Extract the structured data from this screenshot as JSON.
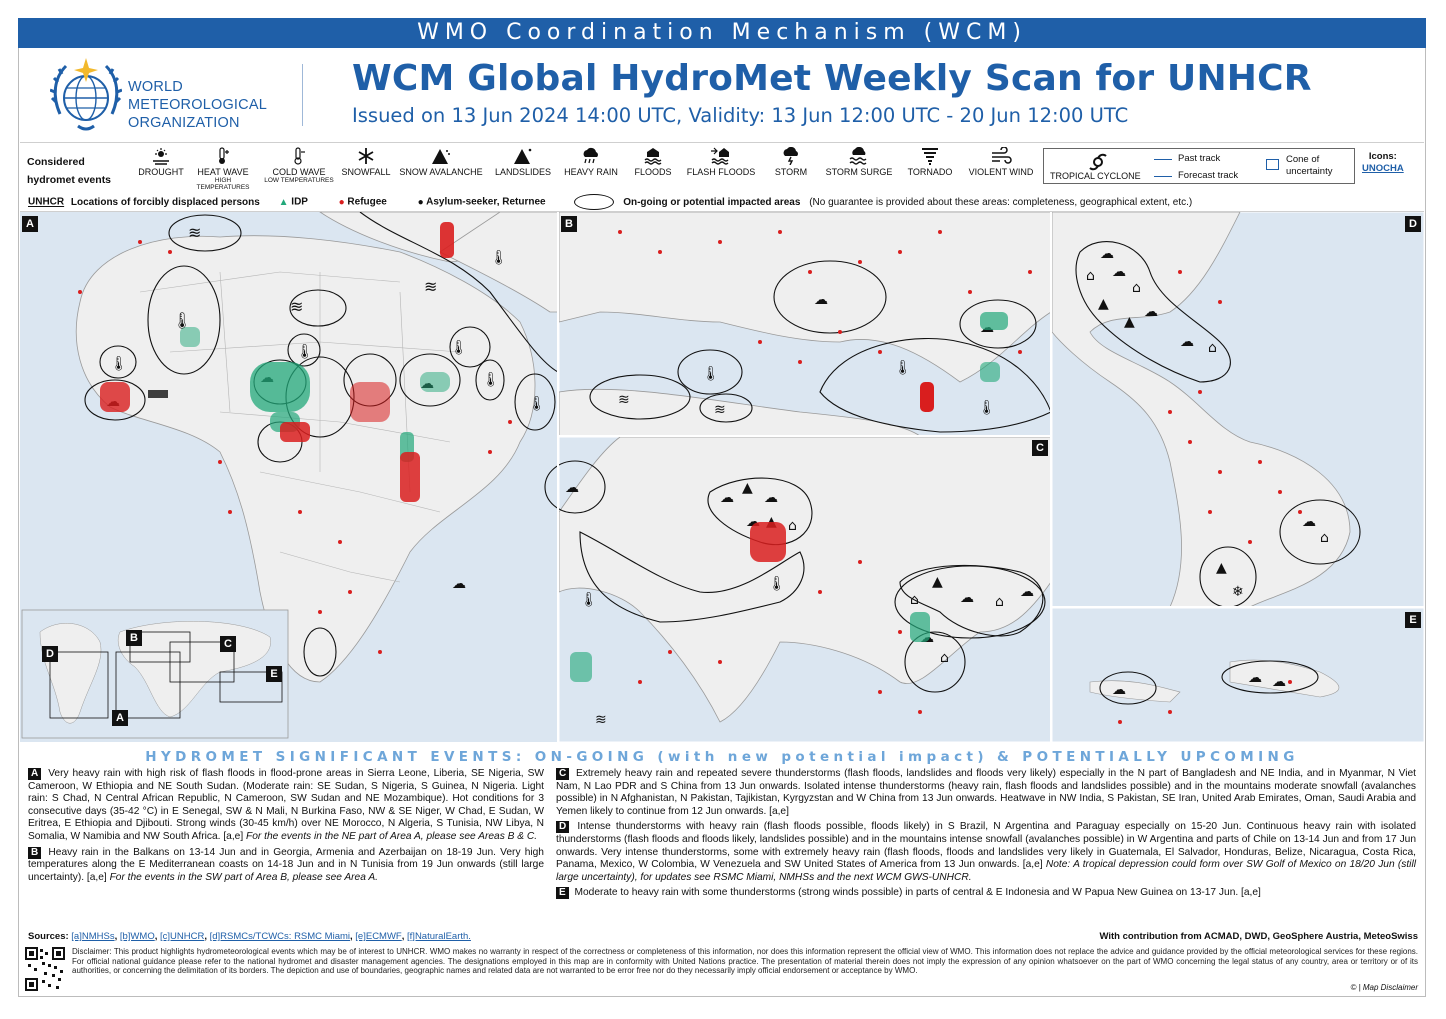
{
  "banner": "WMO Coordination Mechanism (WCM)",
  "org": {
    "line1": "WORLD",
    "line2": "METEOROLOGICAL",
    "line3": "ORGANIZATION"
  },
  "title": "WCM Global HydroMet Weekly Scan for UNHCR",
  "issued": "Issued on 13 Jun 2024 14:00 UTC, Validity: 13 Jun 12:00 UTC - 20 Jun 12:00 UTC",
  "legend": {
    "considered": "Considered",
    "hydromet": "hydromet events",
    "hazards": [
      {
        "label": "DROUGHT",
        "sub": "",
        "icon": "drought-icon"
      },
      {
        "label": "HEAT WAVE",
        "sub": "HIGH TEMPERATURES",
        "icon": "heat-wave-icon"
      },
      {
        "label": "COLD WAVE",
        "sub": "LOW TEMPERATURES",
        "icon": "cold-wave-icon"
      },
      {
        "label": "SNOWFALL",
        "sub": "",
        "icon": "snowfall-icon"
      },
      {
        "label": "SNOW AVALANCHE",
        "sub": "",
        "icon": "snow-avalanche-icon"
      },
      {
        "label": "LANDSLIDES",
        "sub": "",
        "icon": "landslides-icon"
      },
      {
        "label": "HEAVY RAIN",
        "sub": "",
        "icon": "heavy-rain-icon"
      },
      {
        "label": "FLOODS",
        "sub": "",
        "icon": "floods-icon"
      },
      {
        "label": "FLASH FLOODS",
        "sub": "",
        "icon": "flash-floods-icon"
      },
      {
        "label": "STORM",
        "sub": "",
        "icon": "storm-icon"
      },
      {
        "label": "STORM SURGE",
        "sub": "",
        "icon": "storm-surge-icon"
      },
      {
        "label": "TORNADO",
        "sub": "",
        "icon": "tornado-icon"
      },
      {
        "label": "VIOLENT WIND",
        "sub": "",
        "icon": "violent-wind-icon"
      }
    ],
    "tropical_cyclone": "TROPICAL CYCLONE",
    "past_track": "Past track",
    "forecast_track": "Forecast track",
    "cone1": "Cone of",
    "cone2": "uncertainty",
    "icons_label": "Icons:",
    "icons_source": "UNOCHA",
    "unhcr": "UNHCR",
    "locations": "Locations of forcibly displaced persons",
    "idp": "IDP",
    "refugee": "Refugee",
    "asylum": "Asylum-seeker, Returnee",
    "impacted": "On-going or potential impacted areas",
    "impacted_note": "(No guarantee is provided about these areas: completeness, geographical extent, etc.)",
    "colors": {
      "idp": "#22a87a",
      "refugee": "#d91e1e",
      "asylum": "#111111"
    }
  },
  "panels": {
    "a": "A",
    "b": "B",
    "c": "C",
    "d": "D",
    "e": "E",
    "inset": [
      "A",
      "B",
      "C",
      "D",
      "E"
    ]
  },
  "events_title": "HYDROMET SIGNIFICANT EVENTS: ON-GOING (with new potential impact) & POTENTIALLY UPCOMING",
  "events": {
    "A": {
      "tag": "A",
      "text": "Very heavy rain with high risk of flash floods in flood-prone areas in Sierra Leone, Liberia, SE Nigeria, SW Cameroon, W Ethiopia and NE South Sudan. (Moderate rain: SE Sudan, S Nigeria, S Guinea, N Nigeria. Light rain: S Chad, N Central African Republic, N Cameroon, SW Sudan and NE Mozambique). Hot conditions for 3 consecutive days (35-42 °C) in E Senegal, SW & N Mali, N Burkina Faso, NW & SE Niger, W Chad, E Sudan, W Eritrea, E Ethiopia and Djibouti. Strong winds (30-45 km/h) over NE Morocco, N Algeria, S Tunisia, NW Libya, N Somalia, W Namibia and NW South Africa. [a,e]",
      "note": "For the events in the NE part of Area A, please see Areas B & C."
    },
    "B": {
      "tag": "B",
      "text": "Heavy rain in the Balkans on 13-14 Jun and in Georgia, Armenia and Azerbaijan on 18-19 Jun. Very high temperatures along the E Mediterranean coasts on 14-18 Jun and in N Tunisia from 19 Jun onwards (still large uncertainty). [a,e]",
      "note": "For the events in the SW part of Area B, please see Area A."
    },
    "C": {
      "tag": "C",
      "text": "Extremely heavy rain and repeated severe thunderstorms (flash floods, landslides and floods very likely) especially in the N part of Bangladesh and NE India, and in Myanmar, N Viet Nam, N Lao PDR and S China from 13 Jun onwards. Isolated intense thunderstorms (heavy rain, flash floods and landslides possible) and in the mountains moderate snowfall (avalanches possible) in N Afghanistan, N Pakistan, Tajikistan, Kyrgyzstan and W China from 13 Jun onwards. Heatwave in NW India, S Pakistan, SE Iran, United Arab Emirates, Oman, Saudi Arabia and Yemen likely to continue from 12 Jun onwards. [a,e]"
    },
    "D": {
      "tag": "D",
      "text": "Intense thunderstorms with heavy rain (flash floods possible, floods likely) in S Brazil, N Argentina and Paraguay especially on 15-20 Jun. Continuous heavy rain with isolated thunderstorms (flash floods and floods likely, landslides possible) and in the mountains intense snowfall (avalanches possible) in W Argentina and parts of Chile on 13-14 Jun and from 17 Jun onwards. Very intense thunderstorms, some with extremely heavy rain (flash floods, floods and landslides very likely in Guatemala, El Salvador, Honduras, Belize, Nicaragua, Costa Rica, Panama, Mexico, W Colombia, W Venezuela and SW United States of America from 13 Jun onwards. [a,e]",
      "note": "Note: A tropical depression could form over SW Golf of Mexico on 18/20 Jun (still large uncertainty), for updates see RSMC Miami, NMHSs and the next WCM GWS-UNHCR."
    },
    "E": {
      "tag": "E",
      "text": "Moderate to heavy rain with some thunderstorms (strong winds possible) in parts of central & E Indonesia and W Papua New Guinea on 13-17 Jun. [a,e]"
    }
  },
  "sources": {
    "label": "Sources:",
    "items": [
      "[a]NMHSs",
      "[b]WMO",
      "[c]UNHCR",
      "[d]RSMCs/TCWCs: RSMC Miami",
      "[e]ECMWF",
      "[f]NaturalEarth."
    ],
    "contrib": "With contribution from ACMAD, DWD, GeoSphere Austria, MeteoSwiss"
  },
  "disclaimer": "Disclaimer: This product highlights hydrometeorological events which may be of interest to UNHCR. WMO makes no warranty in respect of the correctness or completeness of this information, nor does this information represent the official view of WMO. This information does not replace the advice and guidance provided by the official meteorological services for these regions. For official national guidance please refer to the national hydromet and disaster management agencies. The designations employed in this map are in conformity with United Nations practice. The presentation of material therein does not imply the expression of any opinion whatsoever on the part of WMO concerning the legal status of any country, area or territory or of its authorities, or concerning the delimitation of its borders. The depiction and use of boundaries, geographic names and related data are not warranted to be error free nor do they necessarily imply official endorsement or acceptance by WMO.",
  "disclaimer_link": "© | Map Disclaimer"
}
